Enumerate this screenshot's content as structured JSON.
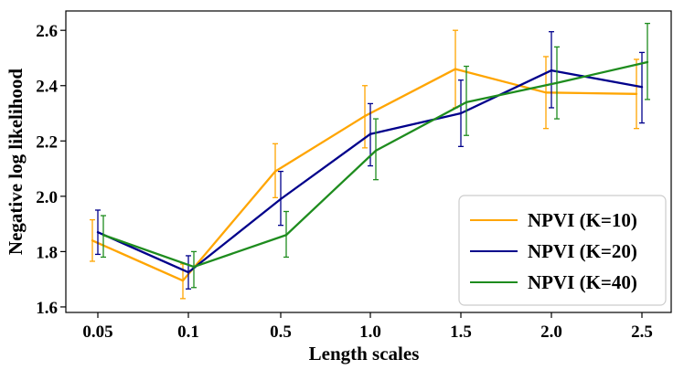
{
  "chart_data": {
    "type": "line",
    "title": "",
    "xlabel": "Length scales",
    "ylabel": "Negative log likelihood",
    "categories": [
      "0.05",
      "0.1",
      "0.5",
      "1.0",
      "1.5",
      "2.0",
      "2.5"
    ],
    "ylim": [
      1.58,
      2.67
    ],
    "yticks": [
      1.6,
      1.8,
      2.0,
      2.2,
      2.4,
      2.6
    ],
    "ytick_labels": [
      "1.6",
      "1.8",
      "2.0",
      "2.2",
      "2.4",
      "2.6"
    ],
    "grid": false,
    "legend_position": "bottom-right",
    "error_bars": true,
    "series": [
      {
        "name": "NPVI (K=10)",
        "color": "#FFA500",
        "values": [
          1.84,
          1.695,
          2.09,
          2.29,
          2.46,
          2.375,
          2.37
        ],
        "err_low": [
          1.765,
          1.63,
          1.995,
          2.175,
          2.32,
          2.245,
          2.245
        ],
        "err_high": [
          1.915,
          1.755,
          2.19,
          2.4,
          2.6,
          2.505,
          2.495
        ]
      },
      {
        "name": "NPVI (K=20)",
        "color": "#00008B",
        "values": [
          1.87,
          1.725,
          1.99,
          2.225,
          2.3,
          2.455,
          2.395
        ],
        "err_low": [
          1.79,
          1.665,
          1.895,
          2.11,
          2.18,
          2.32,
          2.265
        ],
        "err_high": [
          1.95,
          1.785,
          2.09,
          2.335,
          2.42,
          2.595,
          2.52
        ]
      },
      {
        "name": "NPVI (K=40)",
        "color": "#1E8C1E",
        "values": [
          1.86,
          1.745,
          1.86,
          2.165,
          2.34,
          2.41,
          2.485
        ],
        "err_low": [
          1.78,
          1.67,
          1.78,
          2.06,
          2.22,
          2.28,
          2.35
        ],
        "err_high": [
          1.93,
          1.8,
          1.945,
          2.28,
          2.47,
          2.54,
          2.625
        ]
      }
    ]
  }
}
